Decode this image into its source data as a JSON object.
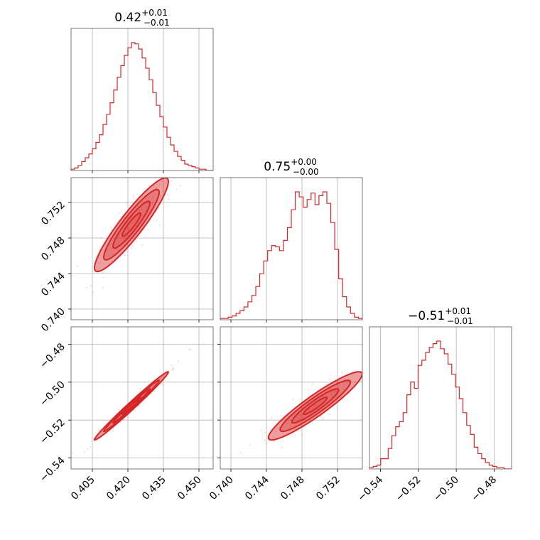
{
  "chart_data": {
    "type": "corner",
    "color": "#d62728",
    "parameters": [
      {
        "title_value": "0.42",
        "title_plus": "+0.01",
        "title_minus": "−0.01",
        "median": 0.4215,
        "sigma": 0.0065,
        "range": [
          0.396,
          0.456
        ],
        "ticks": [
          0.405,
          0.42,
          0.435,
          0.45
        ],
        "tick_labels": [
          "0.405",
          "0.420",
          "0.435",
          "0.450"
        ],
        "hist": [
          0.01,
          0.02,
          0.04,
          0.07,
          0.1,
          0.13,
          0.17,
          0.22,
          0.28,
          0.36,
          0.44,
          0.53,
          0.63,
          0.73,
          0.82,
          0.9,
          0.96,
          1.0,
          0.99,
          0.95,
          0.88,
          0.8,
          0.71,
          0.61,
          0.51,
          0.42,
          0.34,
          0.26,
          0.2,
          0.15,
          0.11,
          0.08,
          0.05,
          0.04,
          0.03,
          0.02,
          0.01,
          0.01,
          0.0,
          0.0
        ]
      },
      {
        "title_value": "0.75",
        "title_plus": "+0.00",
        "title_minus": "−0.00",
        "median": 0.7495,
        "sigma": 0.0022,
        "range": [
          0.7388,
          0.7548
        ],
        "ticks": [
          0.74,
          0.744,
          0.748,
          0.752
        ],
        "tick_labels": [
          "0.740",
          "0.744",
          "0.748",
          "0.752"
        ],
        "hist": [
          0.01,
          0.01,
          0.02,
          0.03,
          0.05,
          0.07,
          0.1,
          0.14,
          0.19,
          0.26,
          0.36,
          0.46,
          0.54,
          0.58,
          0.57,
          0.54,
          0.62,
          0.72,
          0.86,
          1.0,
          0.96,
          0.88,
          0.94,
          0.99,
          0.9,
          0.97,
          1.0,
          0.91,
          0.76,
          0.55,
          0.32,
          0.18,
          0.1,
          0.05,
          0.02,
          0.01
        ]
      },
      {
        "title_value": "−0.51",
        "title_plus": "+0.01",
        "title_minus": "−0.01",
        "median": -0.5125,
        "sigma": 0.0075,
        "range": [
          -0.5458,
          -0.4708
        ],
        "ticks": [
          -0.54,
          -0.52,
          -0.5,
          -0.48
        ],
        "tick_labels": [
          "−0.54",
          "−0.52",
          "−0.50",
          "−0.48"
        ],
        "hist": [
          0.01,
          0.02,
          0.03,
          0.08,
          0.08,
          0.16,
          0.26,
          0.33,
          0.37,
          0.44,
          0.58,
          0.68,
          0.63,
          0.81,
          0.85,
          0.91,
          0.95,
          0.98,
          1.0,
          0.94,
          0.9,
          0.82,
          0.74,
          0.64,
          0.55,
          0.44,
          0.34,
          0.27,
          0.17,
          0.12,
          0.08,
          0.05,
          0.03,
          0.02,
          0.01,
          0.01,
          0.0,
          0.0
        ]
      }
    ],
    "correlations": [
      {
        "row": 1,
        "col": 0,
        "rho": 0.92
      },
      {
        "row": 2,
        "col": 0,
        "rho": 0.99
      },
      {
        "row": 2,
        "col": 1,
        "rho": 0.93
      }
    ],
    "contour_levels": [
      0.5,
      1.0,
      1.5,
      2.0
    ],
    "grid": true
  }
}
